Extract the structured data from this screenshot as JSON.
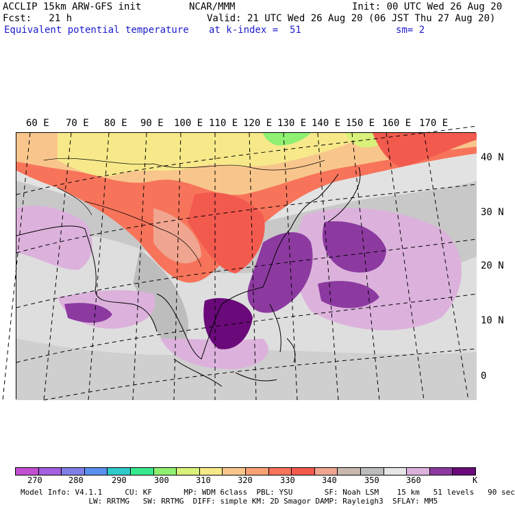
{
  "header": {
    "model": "ACCLIP 15km ARW-GFS init",
    "org": "NCAR/MMM",
    "init": "Init: 00 UTC Wed 26 Aug 20",
    "fcst": "Fcst:   21 h",
    "valid": "Valid: 21 UTC Wed 26 Aug 20 (06 JST Thu 27 Aug 20)",
    "field": "Equivalent potential temperature",
    "level": "at k-index =  51",
    "smooth": "sm= 2"
  },
  "longitude_labels": [
    "60 E",
    "70 E",
    "80 E",
    "90 E",
    "100 E",
    "110 E",
    "120 E",
    "130 E",
    "140 E",
    "150 E",
    "160 E",
    "170 E"
  ],
  "latitude_labels": [
    "40 N",
    "30 N",
    "20 N",
    "10 N",
    "0"
  ],
  "colorbar": {
    "unit": "K",
    "labels": [
      "270",
      "280",
      "290",
      "300",
      "310",
      "320",
      "330",
      "340",
      "350",
      "360"
    ],
    "colors": [
      "#c14fd1",
      "#a35fe0",
      "#7f7fe6",
      "#5a8ff0",
      "#2fc9c9",
      "#38e88f",
      "#8ff072",
      "#d9f07a",
      "#f7e98a",
      "#f8c68c",
      "#f8a273",
      "#f7745a",
      "#f25a4e",
      "#f0a590",
      "#c8b8ae",
      "#bdbdbd",
      "#e6e6e6",
      "#dcb2dc",
      "#8c3aa0",
      "#6a0a7a"
    ]
  },
  "footer": {
    "line1": "Model Info: V4.1.1     CU: KF       MP: WDM 6class  PBL: YSU       SF: Noah LSM    15 km   51 levels   90 sec",
    "line2": "               LW: RRTMG   SW: RRTMG  DIFF: simple KM: 2D Smagor DAMP: Rayleigh3  SFLAY: MM5"
  }
}
